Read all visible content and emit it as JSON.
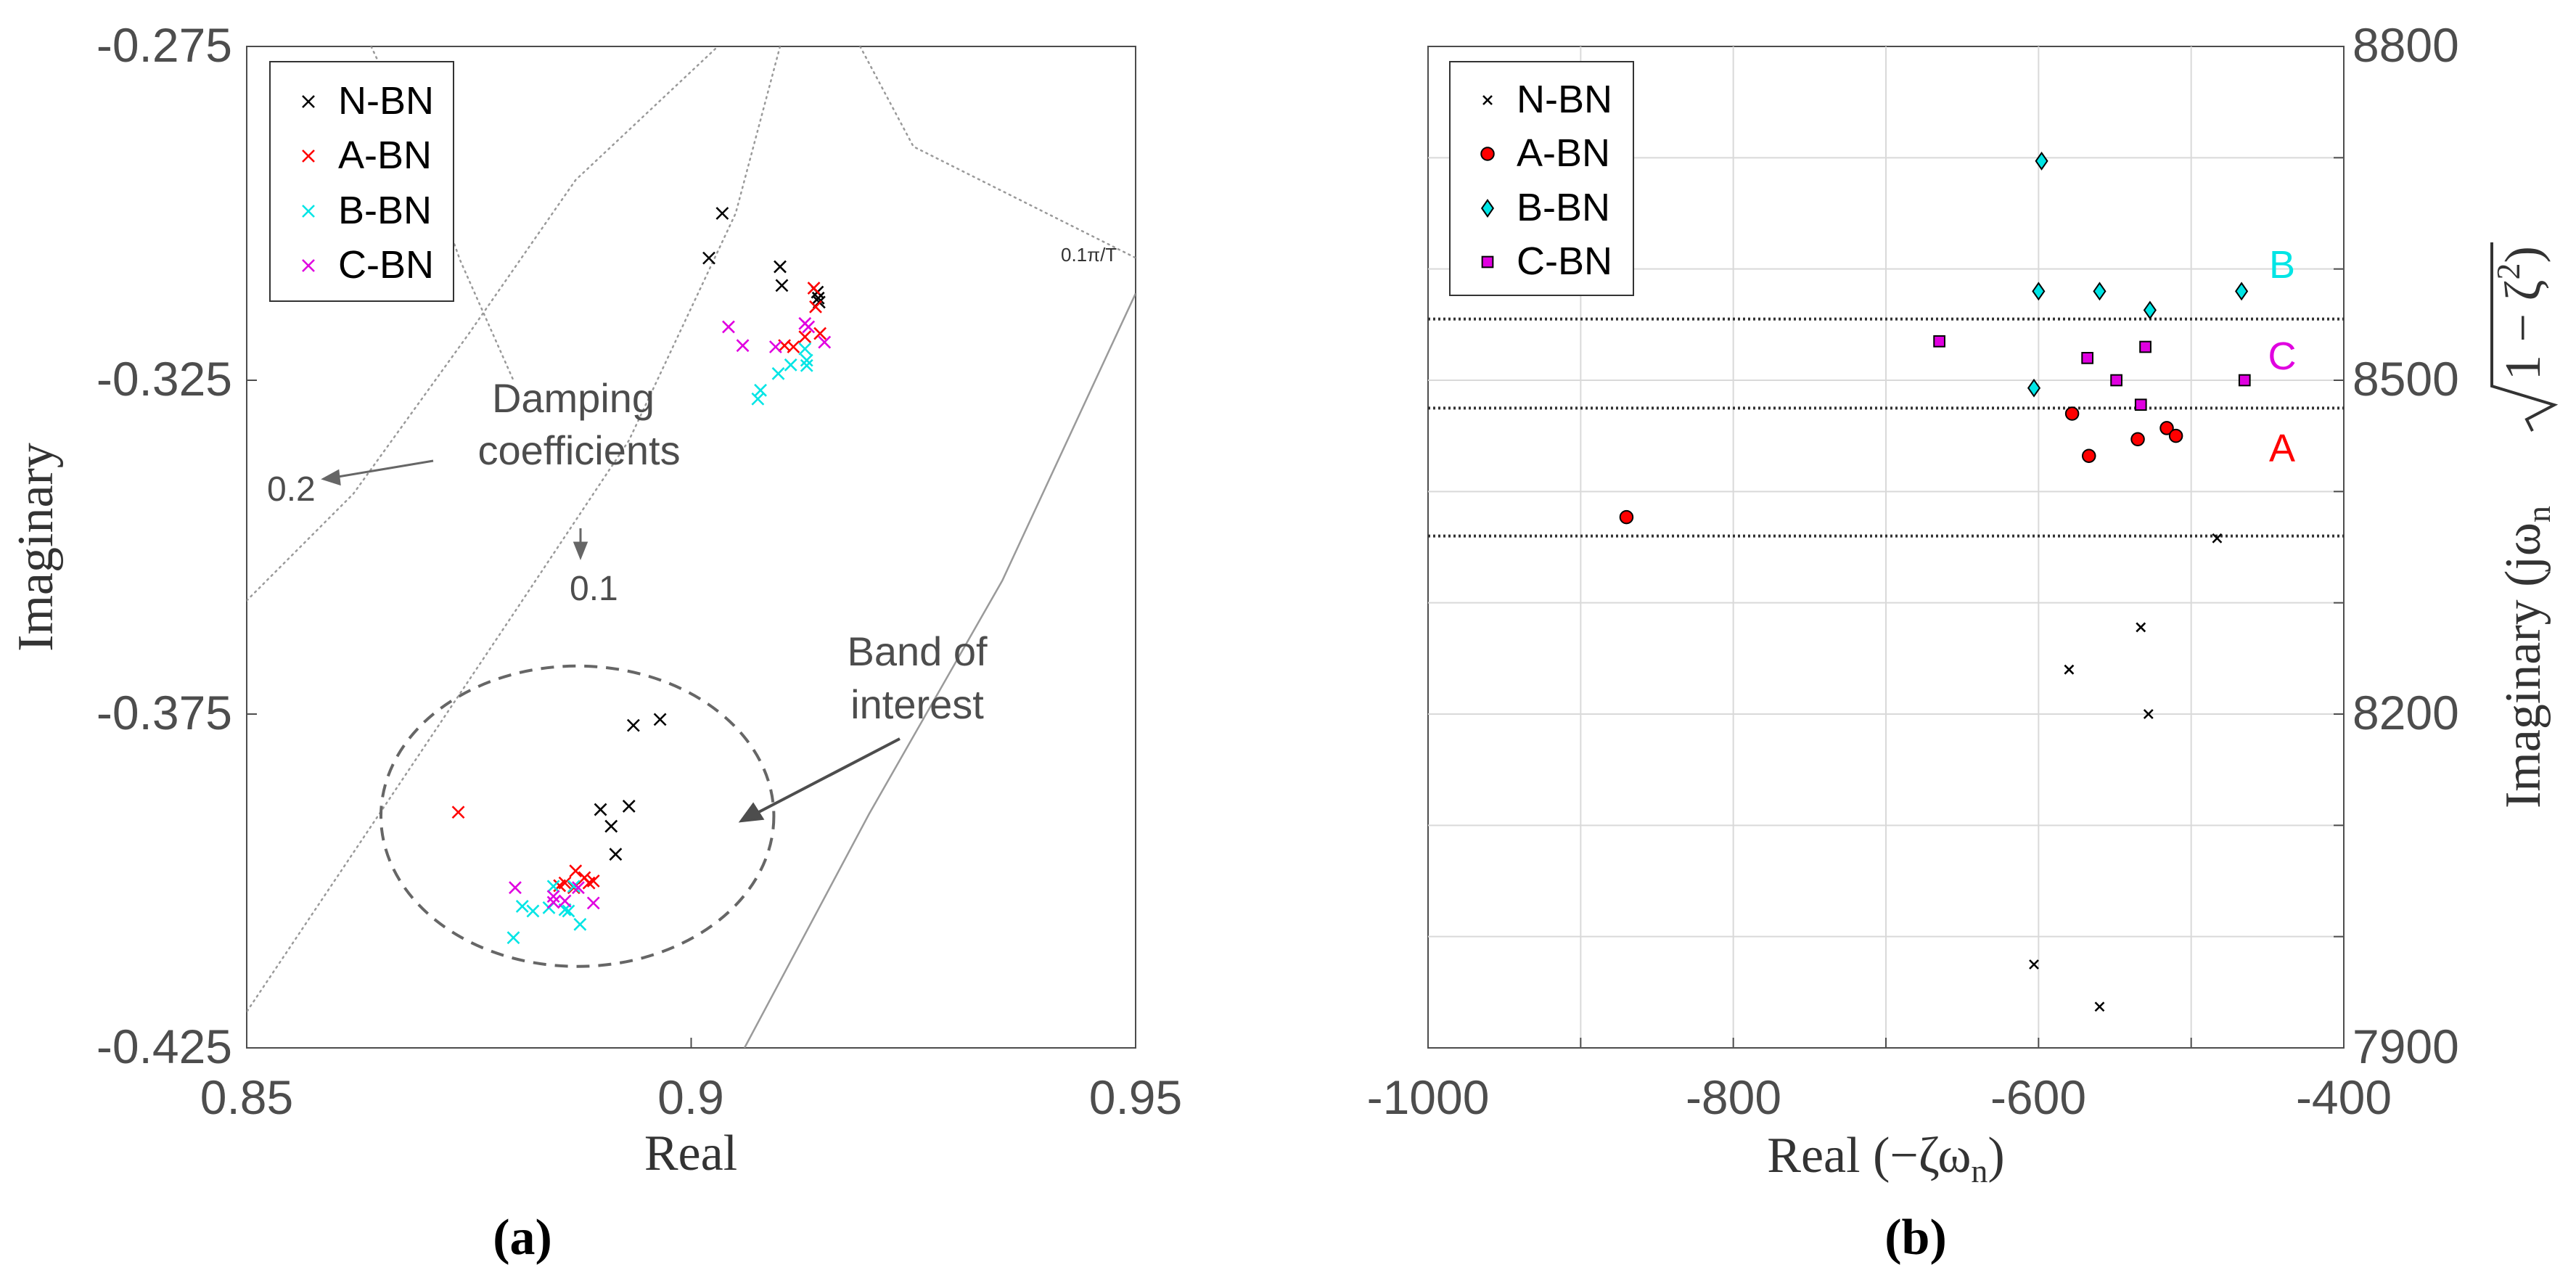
{
  "colors": {
    "nbn": "#000000",
    "abn": "#ff0000",
    "bbn": "#00e5e5",
    "cbn": "#e000e0",
    "grid": "#d9d9d9",
    "axis": "#4d4d4d",
    "annotation": "#4d4d4d",
    "band_line": "#333333"
  },
  "chart_data": [
    {
      "id": "a",
      "type": "scatter",
      "caption": "(a)",
      "xlabel": "Real",
      "ylabel": "Imaginary",
      "xlim": [
        0.85,
        0.95
      ],
      "ylim": [
        -0.425,
        -0.275
      ],
      "xticks": [
        0.85,
        0.9,
        0.95
      ],
      "xtick_labels": [
        "0.85",
        "0.9",
        "0.95"
      ],
      "yticks": [
        -0.425,
        -0.375,
        -0.325,
        -0.275
      ],
      "ytick_labels": [
        "-0.425",
        "-0.375",
        "-0.325",
        "-0.275"
      ],
      "legend": [
        "N-BN",
        "A-BN",
        "B-BN",
        "C-BN"
      ],
      "legend_position": "top-left",
      "series": [
        {
          "name": "N-BN",
          "marker": "x",
          "color_key": "nbn",
          "points": [
            [
              0.9035,
              -0.3
            ],
            [
              0.902,
              -0.3067
            ],
            [
              0.91,
              -0.308
            ],
            [
              0.9102,
              -0.3108
            ],
            [
              0.9142,
              -0.3118
            ],
            [
              0.9143,
              -0.3127
            ],
            [
              0.9144,
              -0.3133
            ],
            [
              0.8935,
              -0.3767
            ],
            [
              0.8965,
              -0.3758
            ],
            [
              0.8898,
              -0.3893
            ],
            [
              0.893,
              -0.3888
            ],
            [
              0.891,
              -0.3918
            ],
            [
              0.8915,
              -0.396
            ]
          ]
        },
        {
          "name": "A-BN",
          "marker": "x",
          "color_key": "abn",
          "points": [
            [
              0.9138,
              -0.3112
            ],
            [
              0.914,
              -0.314
            ],
            [
              0.9145,
              -0.318
            ],
            [
              0.9128,
              -0.3185
            ],
            [
              0.9115,
              -0.32
            ],
            [
              0.9105,
              -0.3198
            ],
            [
              0.8738,
              -0.3897
            ],
            [
              0.887,
              -0.3985
            ],
            [
              0.888,
              -0.3995
            ],
            [
              0.889,
              -0.4
            ],
            [
              0.8885,
              -0.4003
            ],
            [
              0.8858,
              -0.4003
            ],
            [
              0.8852,
              -0.4007
            ],
            [
              0.8868,
              -0.401
            ]
          ]
        },
        {
          "name": "B-BN",
          "marker": "x",
          "color_key": "bbn",
          "points": [
            [
              0.9128,
              -0.3203
            ],
            [
              0.913,
              -0.322
            ],
            [
              0.913,
              -0.3228
            ],
            [
              0.9112,
              -0.3227
            ],
            [
              0.9098,
              -0.324
            ],
            [
              0.9078,
              -0.3265
            ],
            [
              0.9075,
              -0.3278
            ],
            [
              0.88,
              -0.4085
            ],
            [
              0.8875,
              -0.4065
            ],
            [
              0.8858,
              -0.4043
            ],
            [
              0.884,
              -0.404
            ],
            [
              0.8822,
              -0.4045
            ],
            [
              0.881,
              -0.4038
            ],
            [
              0.8868,
              -0.4008
            ],
            [
              0.8845,
              -0.4008
            ],
            [
              0.8862,
              -0.4045
            ]
          ]
        },
        {
          "name": "C-BN",
          "marker": "x",
          "color_key": "cbn",
          "points": [
            [
              0.9042,
              -0.317
            ],
            [
              0.9058,
              -0.3198
            ],
            [
              0.9128,
              -0.3165
            ],
            [
              0.9132,
              -0.317
            ],
            [
              0.915,
              -0.3193
            ],
            [
              0.9095,
              -0.32
            ],
            [
              0.8802,
              -0.401
            ],
            [
              0.8845,
              -0.4023
            ],
            [
              0.8858,
              -0.403
            ],
            [
              0.8873,
              -0.401
            ],
            [
              0.8845,
              -0.4032
            ],
            [
              0.889,
              -0.4033
            ]
          ]
        }
      ],
      "damping_lines": [
        {
          "points": [
            [
              0.8435,
              -0.4325
            ],
            [
              0.88,
              -0.36
            ],
            [
              0.893,
              -0.334
            ],
            [
              0.905,
              -0.3
            ],
            [
              0.91,
              -0.275
            ]
          ]
        },
        {
          "points": [
            [
              0.85,
              -0.358
            ],
            [
              0.862,
              -0.342
            ],
            [
              0.875,
              -0.318
            ],
            [
              0.887,
              -0.295
            ],
            [
              0.903,
              -0.275
            ]
          ]
        },
        {
          "points": [
            [
              0.864,
              -0.275
            ],
            [
              0.87,
              -0.292
            ],
            [
              0.874,
              -0.307
            ],
            [
              0.88,
              -0.325
            ]
          ]
        },
        {
          "points": [
            [
              0.919,
              -0.275
            ],
            [
              0.925,
              -0.29
            ],
            [
              0.94,
              -0.3
            ],
            [
              0.955,
              -0.31
            ]
          ]
        }
      ],
      "nf_line": {
        "points": [
          [
            0.906,
            -0.425
          ],
          [
            0.92,
            -0.39
          ],
          [
            0.935,
            -0.355
          ],
          [
            0.95,
            -0.312
          ]
        ]
      },
      "nf_label": "0.1π/T",
      "annotations": {
        "damping_title_line1": "Damping",
        "damping_title_line2": "coefficients",
        "damping_02": "0.2",
        "damping_01": "0.1",
        "band_line1": "Band of",
        "band_line2": "interest"
      },
      "band_circle": {
        "center": [
          0.8872,
          -0.3903
        ],
        "rx": 0.0221,
        "ry": 0.0225
      }
    },
    {
      "id": "b",
      "type": "scatter",
      "caption": "(b)",
      "xlabel": "Real (−ζω",
      "xlabel_sub": "n",
      "xlabel_close": ")",
      "ylabel": "Imaginary (jω",
      "ylabel_sub": "n",
      "ylabel_sqrt_arg": "1 − ζ",
      "ylabel_sup": "2",
      "ylabel_close": ")",
      "xlim": [
        -1000,
        -400
      ],
      "ylim": [
        7900,
        8800
      ],
      "xticks": [
        -1000,
        -800,
        -600,
        -400
      ],
      "xtick_labels": [
        "-1000",
        "-800",
        "-600",
        "-400"
      ],
      "minor_xticks": [
        -900,
        -700,
        -500
      ],
      "yticks": [
        7900,
        8200,
        8500,
        8800
      ],
      "ytick_labels": [
        "7900",
        "8200",
        "8500",
        "8800"
      ],
      "minor_yticks": [
        8000,
        8100,
        8300,
        8400,
        8600,
        8700
      ],
      "legend": [
        "N-BN",
        "A-BN",
        "B-BN",
        "C-BN"
      ],
      "legend_position": "top-left",
      "series": [
        {
          "name": "N-BN",
          "marker": "x",
          "color_key": "nbn",
          "points": [
            [
              -483,
              8358
            ],
            [
              -533,
              8278
            ],
            [
              -580,
              8240
            ],
            [
              -528,
              8200
            ],
            [
              -603,
              7975
            ],
            [
              -560,
              7937
            ]
          ]
        },
        {
          "name": "A-BN",
          "marker": "circle",
          "color_key": "abn",
          "points": [
            [
              -870,
              8377
            ],
            [
              -578,
              8470
            ],
            [
              -567,
              8432
            ],
            [
              -535,
              8447
            ],
            [
              -516,
              8457
            ],
            [
              -510,
              8450
            ]
          ]
        },
        {
          "name": "B-BN",
          "marker": "diamond",
          "color_key": "bbn",
          "points": [
            [
              -598,
              8697
            ],
            [
              -600,
              8580
            ],
            [
              -560,
              8580
            ],
            [
              -527,
              8563
            ],
            [
              -467,
              8580
            ],
            [
              -603,
              8493
            ]
          ]
        },
        {
          "name": "C-BN",
          "marker": "square",
          "color_key": "cbn",
          "points": [
            [
              -665,
              8535
            ],
            [
              -568,
              8520
            ],
            [
              -530,
              8530
            ],
            [
              -549,
              8500
            ],
            [
              -533,
              8478
            ],
            [
              -465,
              8500
            ]
          ]
        }
      ],
      "band_lines": [
        8555,
        8475,
        8360
      ],
      "band_labels": [
        {
          "text": "B",
          "x": -442,
          "y": 8600,
          "color_key": "bbn"
        },
        {
          "text": "C",
          "x": -442,
          "y": 8518,
          "color_key": "cbn"
        },
        {
          "text": "A",
          "x": -442,
          "y": 8435,
          "color_key": "abn"
        }
      ]
    }
  ]
}
